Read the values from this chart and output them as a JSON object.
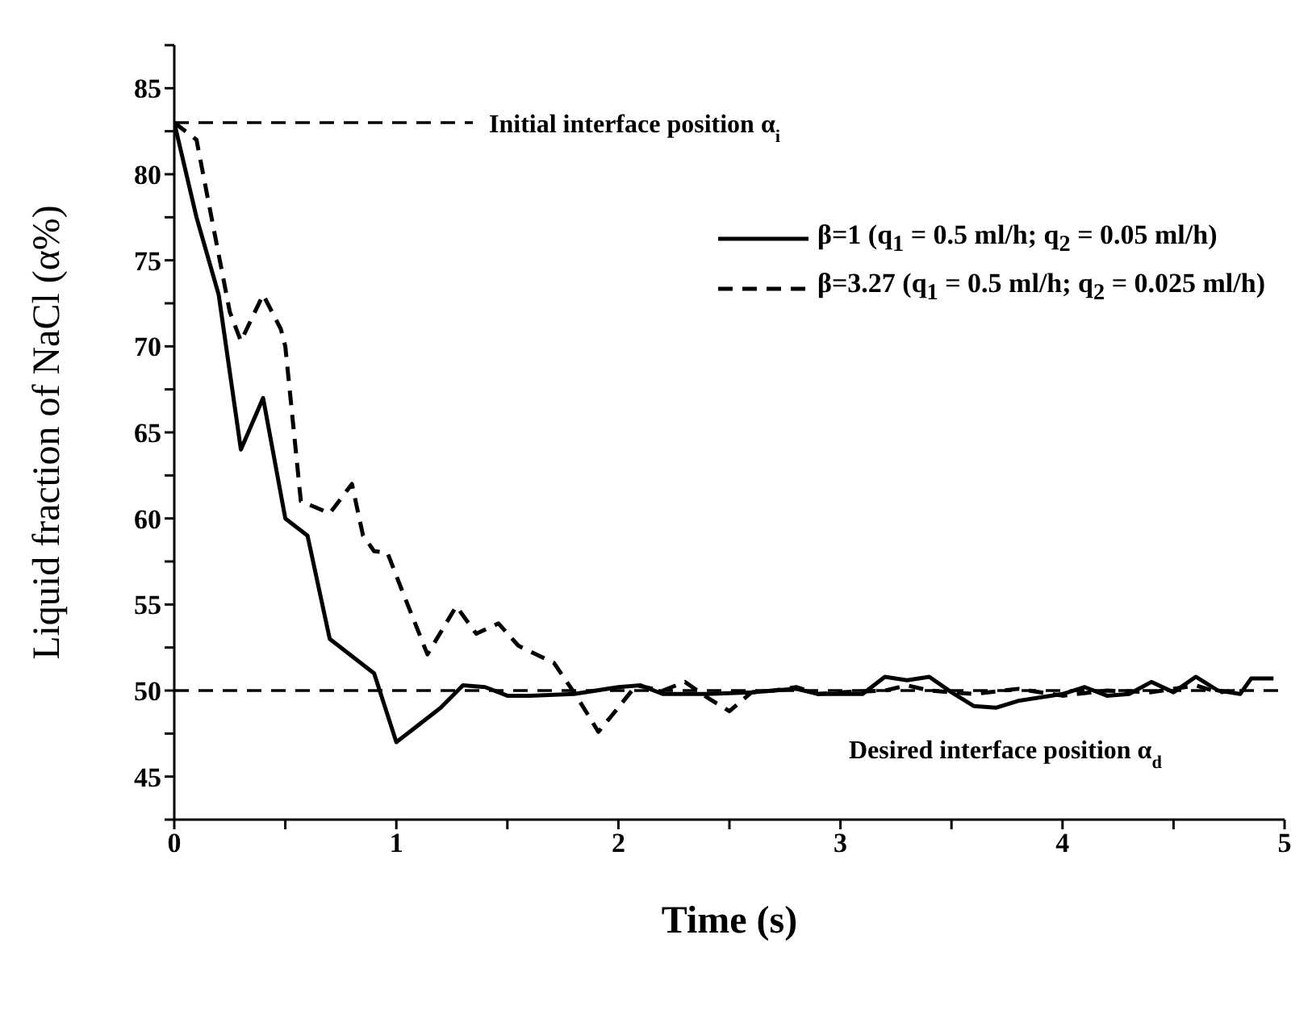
{
  "chart_data": {
    "type": "line",
    "xlabel": "Time (s)",
    "ylabel": "Liquid fraction of NaCl (α%)",
    "xlim": [
      0,
      5
    ],
    "xticks": [
      0,
      {
        "value": 0.5,
        "label": null
      },
      1,
      {
        "value": 1.5,
        "label": null
      },
      2,
      {
        "value": 2.5,
        "label": null
      },
      3,
      {
        "value": 3.5,
        "label": null
      },
      4,
      {
        "value": 4.5,
        "label": null
      },
      5
    ],
    "ylim": [
      42.5,
      87.5
    ],
    "yticks": [
      {
        "value": 42.5,
        "label": null
      },
      45,
      {
        "value": 47.5,
        "label": null
      },
      50,
      {
        "value": 52.5,
        "label": null
      },
      55,
      {
        "value": 57.5,
        "label": null
      },
      60,
      {
        "value": 62.5,
        "label": null
      },
      65,
      {
        "value": 67.5,
        "label": null
      },
      70,
      {
        "value": 72.5,
        "label": null
      },
      75,
      {
        "value": 77.5,
        "label": null
      },
      80,
      {
        "value": 82.5,
        "label": null
      },
      85,
      {
        "value": 87.5,
        "label": null
      }
    ],
    "legend": "top right",
    "marker": "none",
    "series": [
      {
        "name": "β=1 (q$_{1}$ = 0.5 ml/h; q$_{2}$ = 0.05 ml/h)",
        "color": "#000000",
        "line_style": "solid",
        "x": [
          0,
          0.1,
          0.2,
          0.3,
          0.4,
          0.5,
          0.6,
          0.7,
          0.9,
          1.0,
          1.2,
          1.3,
          1.4,
          1.5,
          1.6,
          1.8,
          2.0,
          2.1,
          2.2,
          2.4,
          2.6,
          2.8,
          2.9,
          3.1,
          3.2,
          3.3,
          3.4,
          3.5,
          3.6,
          3.7,
          3.8,
          4.0,
          4.1,
          4.2,
          4.3,
          4.4,
          4.5,
          4.6,
          4.7,
          4.8,
          4.85,
          4.95
        ],
        "values": [
          83,
          77.5,
          73,
          64,
          67,
          60,
          59,
          53,
          51,
          47,
          49,
          50.3,
          50.2,
          49.7,
          49.7,
          49.8,
          50.2,
          50.3,
          49.8,
          49.8,
          49.9,
          50.1,
          49.8,
          49.8,
          50.8,
          50.6,
          50.8,
          49.9,
          49.1,
          49,
          49.4,
          49.8,
          50.2,
          49.7,
          49.8,
          50.5,
          49.9,
          50.8,
          50,
          49.8,
          50.7,
          50.7
        ]
      },
      {
        "name": "β=3.27 (q$_{1}$ = 0.5 ml/h; q$_{2}$ = 0.025 ml/h)",
        "color": "#000000",
        "line_style": "dashed",
        "x": [
          0,
          0.1,
          0.25,
          0.3,
          0.4,
          0.48,
          0.5,
          0.57,
          0.7,
          0.8,
          0.85,
          0.9,
          0.96,
          1.02,
          1.14,
          1.27,
          1.36,
          1.46,
          1.55,
          1.71,
          1.81,
          1.91,
          1.98,
          2.08,
          2.2,
          2.3,
          2.4,
          2.5,
          2.6,
          2.7,
          2.8,
          2.9,
          3.0,
          3.2,
          3.3,
          3.4,
          3.6,
          3.8,
          4.0,
          4.2,
          4.4,
          4.6,
          4.7,
          4.8
        ],
        "values": [
          83,
          82,
          72,
          70.3,
          73,
          71,
          70,
          61,
          60.3,
          62,
          59,
          58.1,
          58,
          56,
          52.1,
          54.9,
          53.3,
          53.9,
          52.6,
          51.6,
          49.7,
          47.6,
          48.7,
          50.3,
          50,
          50.5,
          49.6,
          48.8,
          49.9,
          50,
          50.2,
          49.8,
          49.9,
          50,
          50.3,
          50,
          49.8,
          50.1,
          49.7,
          50,
          49.9,
          50.3,
          49.9,
          50
        ]
      }
    ],
    "ref_lines": [
      {
        "axis": "y",
        "value": 83,
        "label": "Initial interface position α$_{i}$",
        "line_style": "dashed",
        "color": "#000000"
      },
      {
        "axis": "y",
        "value": 50,
        "label": "Desired interface position α$_{d}$",
        "line_style": "dashed",
        "color": "#000000"
      }
    ]
  }
}
